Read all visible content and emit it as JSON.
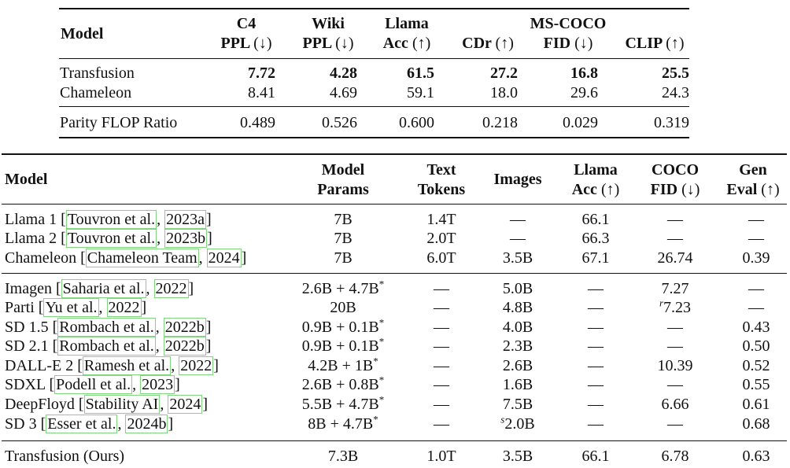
{
  "table1": {
    "header_row1": {
      "model": "Model",
      "c4": "C4",
      "wiki": "Wiki",
      "llama": "Llama",
      "mscoco": "MS-COCO"
    },
    "header_row2": {
      "ppl1": "PPL",
      "ppl2": "PPL",
      "acc": "Acc",
      "cdr": "CDr",
      "fid": "FID",
      "clip": "CLIP"
    },
    "arrows": {
      "down": "(↓)",
      "up": "(↑)"
    },
    "rows": [
      {
        "model": "Transfusion",
        "c4": "7.72",
        "wiki": "4.28",
        "llama": "61.5",
        "cdr": "27.2",
        "fid": "16.8",
        "clip": "25.5"
      },
      {
        "model": "Chameleon",
        "c4": "8.41",
        "wiki": "4.69",
        "llama": "59.1",
        "cdr": "18.0",
        "fid": "29.6",
        "clip": "24.3"
      },
      {
        "model": "Parity FLOP Ratio",
        "c4": "0.489",
        "wiki": "0.526",
        "llama": "0.600",
        "cdr": "0.218",
        "fid": "0.029",
        "clip": "0.319"
      }
    ]
  },
  "table2": {
    "headers": {
      "model": "Model",
      "params1": "Model",
      "params2": "Params",
      "text1": "Text",
      "text2": "Tokens",
      "images": "Images",
      "llama1": "Llama",
      "llama2": "Acc",
      "coco1": "COCO",
      "coco2": "FID",
      "gen1": "Gen",
      "gen2": "Eval"
    },
    "dash": "—",
    "rows": [
      {
        "name": "Llama 1",
        "cite_a": "Touvron et al.",
        "cite_b": "2023a",
        "params": "7B",
        "text": "1.4T",
        "images": "—",
        "llama": "66.1",
        "coco": "—",
        "gen": "—"
      },
      {
        "name": "Llama 2",
        "cite_a": "Touvron et al.",
        "cite_b": "2023b",
        "params": "7B",
        "text": "2.0T",
        "images": "—",
        "llama": "66.3",
        "coco": "—",
        "gen": "—"
      },
      {
        "name": "Chameleon",
        "cite_a": "Chameleon Team",
        "cite_b": "2024",
        "params": "7B",
        "text": "6.0T",
        "images": "3.5B",
        "llama": "67.1",
        "coco": "26.74",
        "gen": "0.39"
      },
      {
        "name": "Imagen",
        "cite_a": "Saharia et al.",
        "cite_b": "2022",
        "params": "2.6B + 4.7B",
        "params_sup": "*",
        "text": "—",
        "images": "5.0B",
        "llama": "—",
        "coco": "7.27",
        "gen": "—"
      },
      {
        "name": "Parti",
        "cite_a": "Yu et al.",
        "cite_b": "2022",
        "params": "20B",
        "text": "—",
        "images": "4.8B",
        "llama": "—",
        "coco_sup": "r",
        "coco": "7.23",
        "gen": "—"
      },
      {
        "name": "SD 1.5",
        "cite_a": "Rombach et al.",
        "cite_b": "2022b",
        "params": "0.9B + 0.1B",
        "params_sup": "*",
        "text": "—",
        "images": "4.0B",
        "llama": "—",
        "coco": "—",
        "gen": "0.43"
      },
      {
        "name": "SD 2.1",
        "cite_a": "Rombach et al.",
        "cite_b": "2022b",
        "params": "0.9B + 0.1B",
        "params_sup": "*",
        "text": "—",
        "images": "2.3B",
        "llama": "—",
        "coco": "—",
        "gen": "0.50"
      },
      {
        "name": "DALL-E 2",
        "cite_a": "Ramesh et al.",
        "cite_b": "2022",
        "params": "4.2B + 1B",
        "params_sup": "*",
        "text": "—",
        "images": "2.6B",
        "llama": "—",
        "coco": "10.39",
        "gen": "0.52"
      },
      {
        "name": "SDXL",
        "cite_a": "Podell et al.",
        "cite_b": "2023",
        "params": "2.6B + 0.8B",
        "params_sup": "*",
        "text": "—",
        "images": "1.6B",
        "llama": "—",
        "coco": "—",
        "gen": "0.55"
      },
      {
        "name": "DeepFloyd",
        "cite_a": "Stability AI",
        "cite_b": "2024",
        "params": "5.5B + 4.7B",
        "params_sup": "*",
        "text": "—",
        "images": "7.5B",
        "llama": "—",
        "coco": "6.66",
        "gen": "0.61"
      },
      {
        "name": "SD 3",
        "cite_a": "Esser et al.",
        "cite_b": "2024b",
        "params": "8B + 4.7B",
        "params_sup": "*",
        "text": "—",
        "images_sup": "s",
        "images": "2.0B",
        "llama": "—",
        "coco": "—",
        "gen": "0.68"
      },
      {
        "name": "Transfusion (Ours)",
        "params": "7.3B",
        "text": "1.0T",
        "images": "3.5B",
        "llama": "66.1",
        "coco": "6.78",
        "gen": "0.63"
      }
    ]
  }
}
